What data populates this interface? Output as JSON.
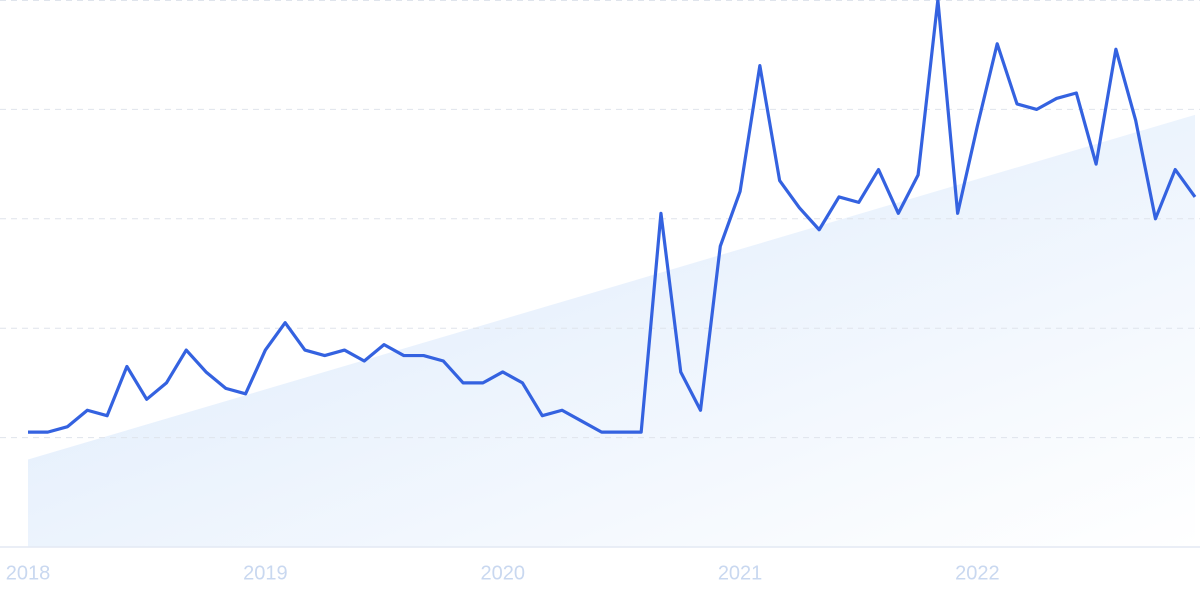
{
  "chart_data": {
    "type": "line",
    "categories": [
      "2018",
      null,
      null,
      null,
      null,
      null,
      null,
      null,
      null,
      null,
      null,
      null,
      "2019",
      null,
      null,
      null,
      null,
      null,
      null,
      null,
      null,
      null,
      null,
      null,
      "2020",
      null,
      null,
      null,
      null,
      null,
      null,
      null,
      null,
      null,
      null,
      null,
      "2021",
      null,
      null,
      null,
      null,
      null,
      null,
      null,
      null,
      null,
      null,
      null,
      "2022",
      null,
      null,
      null,
      null,
      null,
      null,
      null,
      null,
      null,
      null,
      null
    ],
    "series": [
      {
        "color": "#3462e0",
        "values": [
          21,
          21,
          22,
          25,
          24,
          33,
          27,
          30,
          36,
          32,
          29,
          28,
          36,
          41,
          36,
          35,
          36,
          34,
          37,
          35,
          35,
          34,
          30,
          30,
          32,
          30,
          24,
          25,
          23,
          21,
          21,
          21,
          61,
          32,
          25,
          55,
          65,
          88,
          67,
          62,
          58,
          64,
          63,
          69,
          61,
          68,
          100,
          61,
          77,
          92,
          81,
          80,
          82,
          83,
          70,
          91,
          78,
          60,
          69,
          64
        ]
      }
    ],
    "trend": {
      "color": "#dbe9fa",
      "values": [
        16,
        79
      ]
    },
    "ylim": [
      0,
      100
    ],
    "yticks": [
      20,
      40,
      60,
      80,
      100
    ],
    "grid": true
  }
}
